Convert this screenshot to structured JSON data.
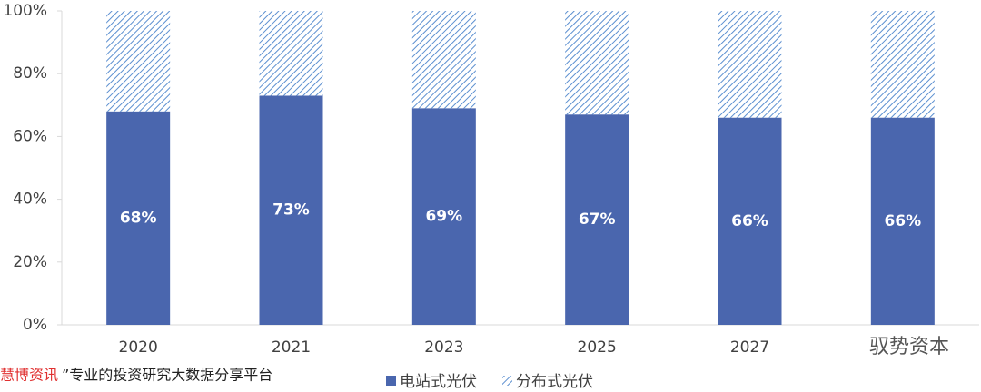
{
  "chart_data": {
    "type": "bar",
    "stacked": true,
    "categories": [
      "2020",
      "2021",
      "2023",
      "2025",
      "2027",
      null
    ],
    "series": [
      {
        "name": "电站式光伏",
        "color": "#4a66ae",
        "fill": "solid",
        "values": [
          68,
          73,
          69,
          67,
          66,
          66
        ],
        "value_labels": [
          "68%",
          "73%",
          "69%",
          "67%",
          "66%",
          "66%"
        ]
      },
      {
        "name": "分布式光伏",
        "color": "#5b8fd0",
        "fill": "hatch",
        "values": [
          32,
          27,
          31,
          33,
          34,
          34
        ]
      }
    ],
    "ylim": [
      0,
      100
    ],
    "yticks": [
      {
        "value": 0,
        "label": "0%"
      },
      {
        "value": 20,
        "label": "20%"
      },
      {
        "value": 40,
        "label": "40%"
      },
      {
        "value": 60,
        "label": "60%"
      },
      {
        "value": 80,
        "label": "80%"
      },
      {
        "value": 100,
        "label": "100%"
      }
    ],
    "grid": false,
    "legend": "bottom"
  },
  "watermark": {
    "source": "慧博资讯",
    "slogan": "”专业的投资研究大数据分享平台",
    "brand": "驭势资本"
  }
}
